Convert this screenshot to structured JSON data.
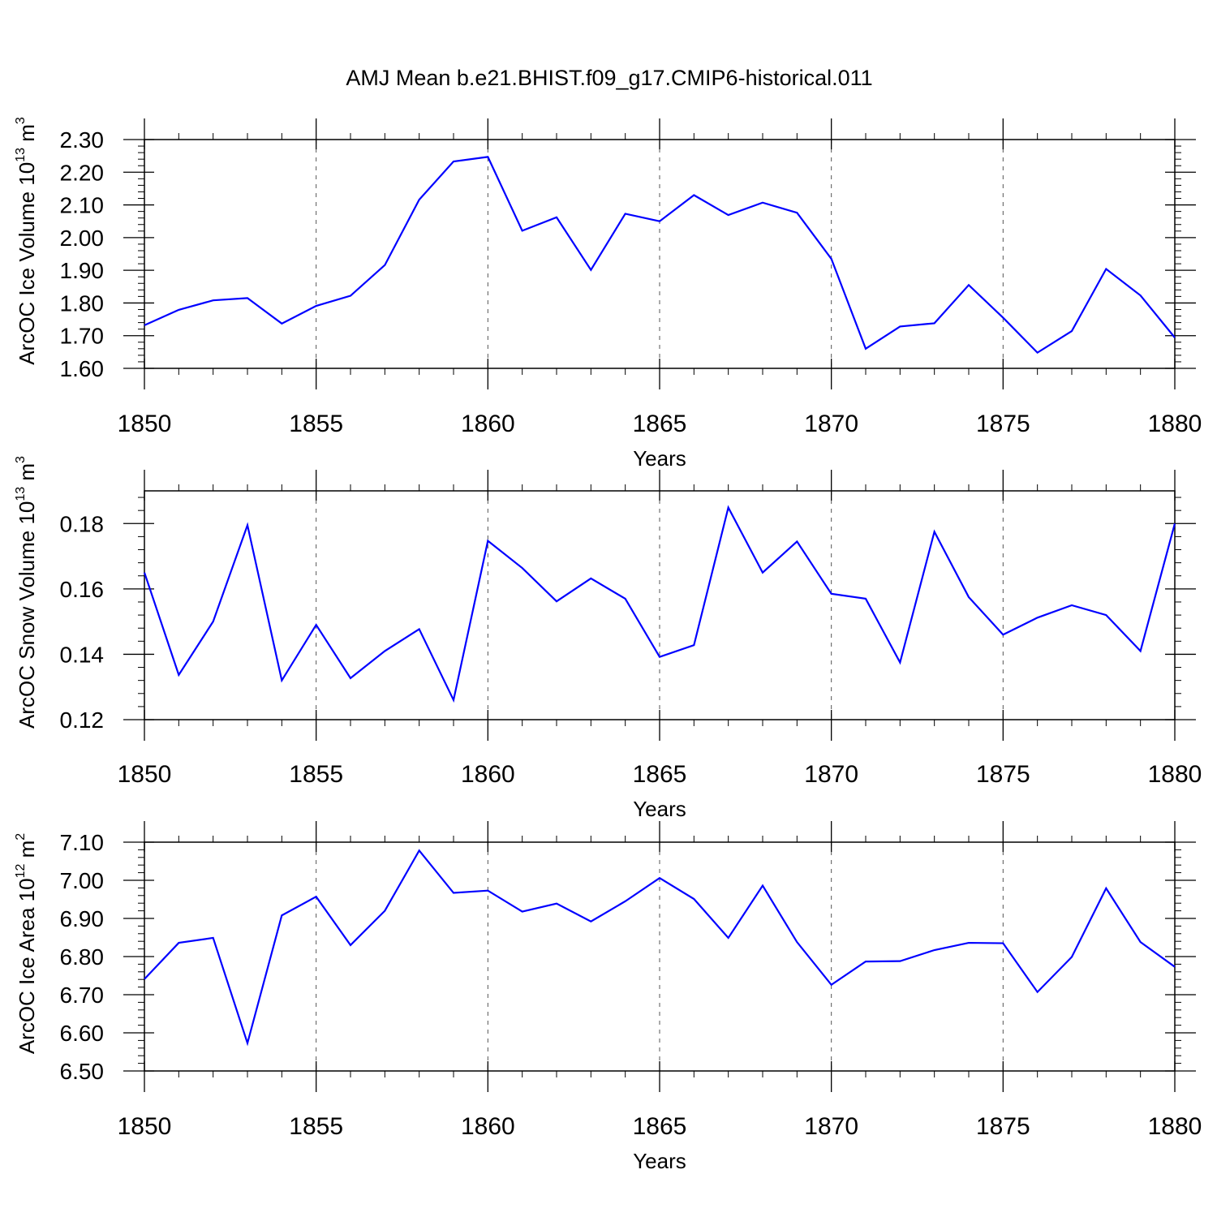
{
  "title": "AMJ Mean b.e21.BHIST.f09_g17.CMIP6-historical.011",
  "chart_data": [
    {
      "type": "line",
      "xlabel": "Years",
      "ylabel_text": "ArcOC Ice Volume 10",
      "ylabel_exponent": "13",
      "ylabel_unit": " m",
      "ylabel_unit_exponent": "3",
      "xlim": [
        1850,
        1880
      ],
      "ylim": [
        1.6,
        2.3
      ],
      "xticks": [
        1850,
        1855,
        1860,
        1865,
        1870,
        1875,
        1880
      ],
      "xtick_labels": [
        "1850",
        "1855",
        "1860",
        "1865",
        "1870",
        "1875",
        "1880"
      ],
      "yticks": [
        1.6,
        1.7,
        1.8,
        1.9,
        2.0,
        2.1,
        2.2,
        2.3
      ],
      "ytick_labels": [
        "1.60",
        "1.70",
        "1.80",
        "1.90",
        "2.00",
        "2.10",
        "2.20",
        "2.30"
      ],
      "grid": "vertical dashed at major x ticks",
      "color": "#0000ff",
      "x": [
        1850,
        1851,
        1852,
        1853,
        1854,
        1855,
        1856,
        1857,
        1858,
        1859,
        1860,
        1861,
        1862,
        1863,
        1864,
        1865,
        1866,
        1867,
        1868,
        1869,
        1870,
        1871,
        1872,
        1873,
        1874,
        1875,
        1876,
        1877,
        1878,
        1879,
        1880
      ],
      "y": [
        1.732,
        1.779,
        1.808,
        1.815,
        1.737,
        1.791,
        1.822,
        1.916,
        2.116,
        2.233,
        2.247,
        2.021,
        2.062,
        1.901,
        2.073,
        2.05,
        2.13,
        2.069,
        2.107,
        2.076,
        1.935,
        1.66,
        1.728,
        1.738,
        1.855,
        1.755,
        1.648,
        1.714,
        1.904,
        1.823,
        1.694
      ]
    },
    {
      "type": "line",
      "xlabel": "Years",
      "ylabel_text": "ArcOC Snow Volume 10",
      "ylabel_exponent": "13",
      "ylabel_unit": " m",
      "ylabel_unit_exponent": "3",
      "xlim": [
        1850,
        1880
      ],
      "ylim": [
        0.12,
        0.19
      ],
      "xticks": [
        1850,
        1855,
        1860,
        1865,
        1870,
        1875,
        1880
      ],
      "xtick_labels": [
        "1850",
        "1855",
        "1860",
        "1865",
        "1870",
        "1875",
        "1880"
      ],
      "yticks": [
        0.12,
        0.14,
        0.16,
        0.18
      ],
      "ytick_labels": [
        "0.12",
        "0.14",
        "0.16",
        "0.18"
      ],
      "grid": "vertical dashed at major x ticks",
      "color": "#0000ff",
      "x": [
        1850,
        1851,
        1852,
        1853,
        1854,
        1855,
        1856,
        1857,
        1858,
        1859,
        1860,
        1861,
        1862,
        1863,
        1864,
        1865,
        1866,
        1867,
        1868,
        1869,
        1870,
        1871,
        1872,
        1873,
        1874,
        1875,
        1876,
        1877,
        1878,
        1879,
        1880
      ],
      "y": [
        0.165,
        0.1337,
        0.15,
        0.1795,
        0.132,
        0.149,
        0.1327,
        0.141,
        0.1477,
        0.126,
        0.1747,
        0.1664,
        0.1562,
        0.1632,
        0.157,
        0.1392,
        0.1428,
        0.1849,
        0.165,
        0.1745,
        0.1585,
        0.157,
        0.1375,
        0.1775,
        0.1575,
        0.146,
        0.1512,
        0.155,
        0.152,
        0.141,
        0.18
      ]
    },
    {
      "type": "line",
      "xlabel": "Years",
      "ylabel_text": "ArcOC Ice Area 10",
      "ylabel_exponent": "12",
      "ylabel_unit": " m",
      "ylabel_unit_exponent": "2",
      "xlim": [
        1850,
        1880
      ],
      "ylim": [
        6.5,
        7.1
      ],
      "xticks": [
        1850,
        1855,
        1860,
        1865,
        1870,
        1875,
        1880
      ],
      "xtick_labels": [
        "1850",
        "1855",
        "1860",
        "1865",
        "1870",
        "1875",
        "1880"
      ],
      "yticks": [
        6.5,
        6.6,
        6.7,
        6.8,
        6.9,
        7.0,
        7.1
      ],
      "ytick_labels": [
        "6.50",
        "6.60",
        "6.70",
        "6.80",
        "6.90",
        "7.00",
        "7.10"
      ],
      "grid": "vertical dashed at major x ticks",
      "color": "#0000ff",
      "x": [
        1850,
        1851,
        1852,
        1853,
        1854,
        1855,
        1856,
        1857,
        1858,
        1859,
        1860,
        1861,
        1862,
        1863,
        1864,
        1865,
        1866,
        1867,
        1868,
        1869,
        1870,
        1871,
        1872,
        1873,
        1874,
        1875,
        1876,
        1877,
        1878,
        1879,
        1880
      ],
      "y": [
        6.741,
        6.836,
        6.849,
        6.573,
        6.908,
        6.957,
        6.83,
        6.92,
        7.078,
        6.967,
        6.973,
        6.918,
        6.939,
        6.892,
        6.945,
        7.006,
        6.951,
        6.849,
        6.986,
        6.838,
        6.726,
        6.787,
        6.788,
        6.817,
        6.836,
        6.835,
        6.707,
        6.799,
        6.979,
        6.838,
        6.773
      ]
    }
  ]
}
